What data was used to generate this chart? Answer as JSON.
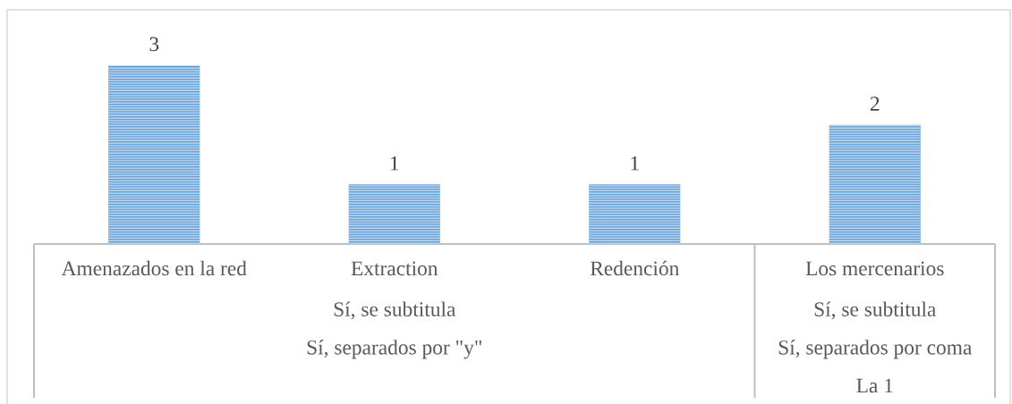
{
  "chart_data": {
    "type": "bar",
    "categories": [
      "Amenazados en la red",
      "Extraction",
      "Redención",
      "Los mercenarios"
    ],
    "values": [
      3,
      1,
      1,
      2
    ],
    "color": "#5b9bd5",
    "data_labels": true,
    "annotations": [
      "Sí, se subtitula",
      "Sí, separados por \"y\"",
      "Sí, se subtitula",
      "Sí, separados por coma",
      "La 1"
    ]
  }
}
